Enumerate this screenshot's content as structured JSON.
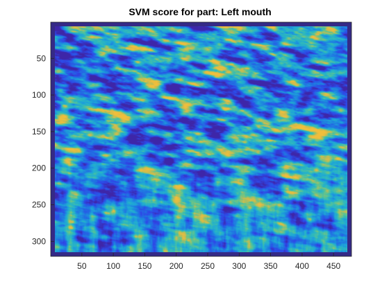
{
  "chart_data": {
    "type": "heatmap",
    "title": "SVM score for part: Left mouth",
    "xlabel": "",
    "ylabel": "",
    "xlim": [
      0.5,
      478.5
    ],
    "ylim": [
      0.5,
      320.5
    ],
    "y_direction": "reverse",
    "xticks": [
      50,
      100,
      150,
      200,
      250,
      300,
      350,
      400,
      450
    ],
    "yticks": [
      50,
      100,
      150,
      200,
      250,
      300
    ],
    "colormap": "parula",
    "colors": {
      "low": "#3e26a8",
      "mid_low": "#2e6fe0",
      "mid": "#1fa5d8",
      "mid_high": "#27b8b0",
      "high": "#e8bc48",
      "border": "#352a87"
    },
    "grid": false
  }
}
